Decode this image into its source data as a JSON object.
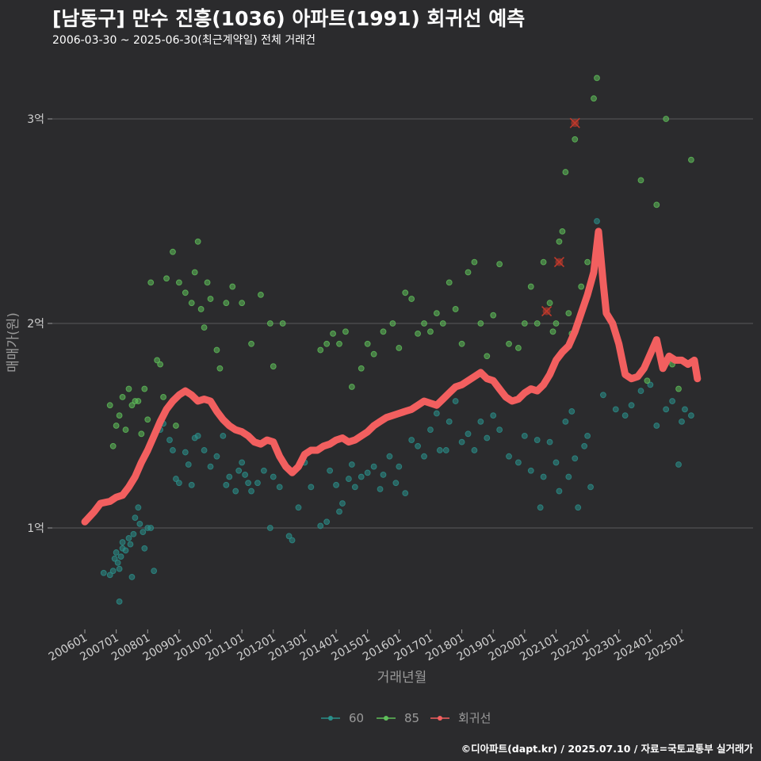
{
  "header": {
    "title": "[남동구] 만수 진흥(1036) 아파트(1991) 회귀선 예측",
    "subtitle": "2006-03-30 ~ 2025-06-30(최근계약일) 전체 거래건"
  },
  "caption": "©디아파트(dapt.kr) / 2025.07.10 / 자료=국토교통부 실거래가",
  "colors": {
    "background": "#2b2b2d",
    "series_60": "#2a8f8a",
    "series_85": "#5fbf5a",
    "regression": "#f25f5f",
    "outlier": "#c0392b",
    "grid": "#5a5a5a"
  },
  "chart_data": {
    "type": "scatter",
    "xlabel": "거래년월",
    "ylabel": "매매가(원)",
    "x_tick_labels": [
      "200601",
      "200701",
      "200801",
      "200901",
      "201001",
      "201101",
      "201201",
      "201301",
      "201401",
      "201501",
      "201601",
      "201701",
      "201801",
      "201901",
      "202001",
      "202101",
      "202201",
      "202301",
      "202401",
      "202501"
    ],
    "y_ticks": [
      1,
      2,
      3
    ],
    "y_tick_labels": [
      "1억",
      "2억",
      "3억"
    ],
    "ylim": [
      0.5,
      3.25
    ],
    "xlim": [
      2005.8,
      2025.75
    ],
    "grid": true,
    "legend_position": "bottom",
    "legend": [
      {
        "key": "60",
        "label": "60"
      },
      {
        "key": "85",
        "label": "85"
      },
      {
        "key": "reg",
        "label": "회귀선"
      }
    ],
    "series": [
      {
        "name": "60",
        "points": [
          [
            2006.6,
            0.78
          ],
          [
            2006.8,
            0.77
          ],
          [
            2006.9,
            0.79
          ],
          [
            2006.95,
            0.85
          ],
          [
            2007.0,
            0.88
          ],
          [
            2007.05,
            0.83
          ],
          [
            2007.1,
            0.8
          ],
          [
            2007.15,
            0.86
          ],
          [
            2007.2,
            0.9
          ],
          [
            2007.3,
            0.89
          ],
          [
            2007.4,
            0.95
          ],
          [
            2007.45,
            0.92
          ],
          [
            2007.5,
            0.76
          ],
          [
            2007.55,
            0.97
          ],
          [
            2007.6,
            1.05
          ],
          [
            2007.7,
            1.1
          ],
          [
            2007.75,
            1.02
          ],
          [
            2007.85,
            0.98
          ],
          [
            2007.9,
            0.9
          ],
          [
            2007.1,
            0.64
          ],
          [
            2007.2,
            0.93
          ],
          [
            2008.0,
            1.0
          ],
          [
            2008.1,
            1.0
          ],
          [
            2008.2,
            0.79
          ],
          [
            2007.9,
            1.35
          ],
          [
            2008.4,
            1.48
          ],
          [
            2008.5,
            1.51
          ],
          [
            2008.7,
            1.43
          ],
          [
            2008.8,
            1.38
          ],
          [
            2008.9,
            1.24
          ],
          [
            2009.0,
            1.22
          ],
          [
            2009.2,
            1.37
          ],
          [
            2009.3,
            1.31
          ],
          [
            2009.4,
            1.21
          ],
          [
            2009.5,
            1.44
          ],
          [
            2009.6,
            1.45
          ],
          [
            2009.8,
            1.38
          ],
          [
            2010.0,
            1.3
          ],
          [
            2010.2,
            1.35
          ],
          [
            2010.4,
            1.45
          ],
          [
            2010.5,
            1.21
          ],
          [
            2010.6,
            1.25
          ],
          [
            2010.8,
            1.18
          ],
          [
            2010.9,
            1.28
          ],
          [
            2011.0,
            1.32
          ],
          [
            2011.1,
            1.26
          ],
          [
            2011.2,
            1.22
          ],
          [
            2011.3,
            1.18
          ],
          [
            2011.5,
            1.22
          ],
          [
            2011.7,
            1.28
          ],
          [
            2011.9,
            1.0
          ],
          [
            2012.0,
            1.25
          ],
          [
            2012.2,
            1.2
          ],
          [
            2012.3,
            1.32
          ],
          [
            2012.5,
            0.96
          ],
          [
            2012.6,
            0.94
          ],
          [
            2012.8,
            1.1
          ],
          [
            2013.0,
            1.32
          ],
          [
            2013.2,
            1.2
          ],
          [
            2013.5,
            1.01
          ],
          [
            2013.7,
            1.03
          ],
          [
            2013.8,
            1.28
          ],
          [
            2014.0,
            1.21
          ],
          [
            2014.1,
            1.08
          ],
          [
            2014.2,
            1.12
          ],
          [
            2014.4,
            1.24
          ],
          [
            2014.5,
            1.31
          ],
          [
            2014.6,
            1.2
          ],
          [
            2014.8,
            1.25
          ],
          [
            2015.0,
            1.27
          ],
          [
            2015.2,
            1.3
          ],
          [
            2015.4,
            1.19
          ],
          [
            2015.5,
            1.26
          ],
          [
            2015.7,
            1.35
          ],
          [
            2015.9,
            1.22
          ],
          [
            2016.0,
            1.3
          ],
          [
            2016.2,
            1.17
          ],
          [
            2016.4,
            1.43
          ],
          [
            2016.6,
            1.4
          ],
          [
            2016.8,
            1.35
          ],
          [
            2017.0,
            1.48
          ],
          [
            2017.2,
            1.56
          ],
          [
            2017.3,
            1.38
          ],
          [
            2017.5,
            1.38
          ],
          [
            2017.6,
            1.52
          ],
          [
            2017.8,
            1.62
          ],
          [
            2018.0,
            1.42
          ],
          [
            2018.2,
            1.46
          ],
          [
            2018.4,
            1.38
          ],
          [
            2018.6,
            1.52
          ],
          [
            2018.8,
            1.44
          ],
          [
            2019.0,
            1.55
          ],
          [
            2019.2,
            1.48
          ],
          [
            2019.5,
            1.35
          ],
          [
            2019.8,
            1.32
          ],
          [
            2020.0,
            1.45
          ],
          [
            2020.2,
            1.28
          ],
          [
            2020.4,
            1.43
          ],
          [
            2020.5,
            1.1
          ],
          [
            2020.6,
            1.25
          ],
          [
            2020.8,
            1.42
          ],
          [
            2021.0,
            1.32
          ],
          [
            2021.1,
            1.18
          ],
          [
            2021.3,
            1.52
          ],
          [
            2021.4,
            1.25
          ],
          [
            2021.5,
            1.57
          ],
          [
            2021.6,
            1.34
          ],
          [
            2021.7,
            1.1
          ],
          [
            2021.9,
            1.4
          ],
          [
            2022.0,
            1.45
          ],
          [
            2022.1,
            1.2
          ],
          [
            2022.3,
            2.5
          ],
          [
            2022.5,
            1.65
          ],
          [
            2022.9,
            1.58
          ],
          [
            2023.2,
            1.55
          ],
          [
            2023.4,
            1.6
          ],
          [
            2023.7,
            1.67
          ],
          [
            2024.0,
            1.7
          ],
          [
            2024.2,
            1.5
          ],
          [
            2024.5,
            1.58
          ],
          [
            2024.7,
            1.62
          ],
          [
            2024.9,
            1.31
          ],
          [
            2025.0,
            1.52
          ],
          [
            2025.1,
            1.58
          ],
          [
            2025.3,
            1.55
          ]
        ]
      },
      {
        "name": "85",
        "points": [
          [
            2006.8,
            1.6
          ],
          [
            2006.9,
            1.4
          ],
          [
            2007.0,
            1.5
          ],
          [
            2007.1,
            1.55
          ],
          [
            2007.2,
            1.64
          ],
          [
            2007.3,
            1.48
          ],
          [
            2007.4,
            1.68
          ],
          [
            2007.5,
            1.6
          ],
          [
            2007.6,
            1.62
          ],
          [
            2007.7,
            1.62
          ],
          [
            2007.8,
            1.46
          ],
          [
            2007.9,
            1.68
          ],
          [
            2008.0,
            1.53
          ],
          [
            2008.1,
            2.2
          ],
          [
            2008.3,
            1.82
          ],
          [
            2008.4,
            1.8
          ],
          [
            2008.5,
            1.64
          ],
          [
            2008.6,
            2.22
          ],
          [
            2008.8,
            2.35
          ],
          [
            2008.9,
            1.5
          ],
          [
            2009.0,
            2.2
          ],
          [
            2009.2,
            2.15
          ],
          [
            2009.4,
            2.1
          ],
          [
            2009.5,
            2.25
          ],
          [
            2009.6,
            2.4
          ],
          [
            2009.7,
            2.07
          ],
          [
            2009.8,
            1.98
          ],
          [
            2009.9,
            2.2
          ],
          [
            2010.0,
            2.12
          ],
          [
            2010.2,
            1.87
          ],
          [
            2010.3,
            1.78
          ],
          [
            2010.5,
            2.1
          ],
          [
            2010.7,
            2.18
          ],
          [
            2011.0,
            2.1
          ],
          [
            2011.3,
            1.9
          ],
          [
            2011.6,
            2.14
          ],
          [
            2011.9,
            2.0
          ],
          [
            2012.0,
            1.79
          ],
          [
            2012.3,
            2.0
          ],
          [
            2013.5,
            1.87
          ],
          [
            2013.7,
            1.9
          ],
          [
            2013.9,
            1.95
          ],
          [
            2014.1,
            1.9
          ],
          [
            2014.3,
            1.96
          ],
          [
            2014.5,
            1.69
          ],
          [
            2014.8,
            1.78
          ],
          [
            2015.0,
            1.9
          ],
          [
            2015.2,
            1.85
          ],
          [
            2015.5,
            1.96
          ],
          [
            2015.8,
            2.0
          ],
          [
            2016.0,
            1.88
          ],
          [
            2016.2,
            2.15
          ],
          [
            2016.4,
            2.12
          ],
          [
            2016.6,
            1.95
          ],
          [
            2016.8,
            2.0
          ],
          [
            2017.0,
            1.96
          ],
          [
            2017.2,
            2.05
          ],
          [
            2017.4,
            2.0
          ],
          [
            2017.6,
            2.2
          ],
          [
            2017.8,
            2.07
          ],
          [
            2018.0,
            1.9
          ],
          [
            2018.2,
            2.25
          ],
          [
            2018.4,
            2.3
          ],
          [
            2018.6,
            2.0
          ],
          [
            2018.8,
            1.84
          ],
          [
            2019.0,
            2.04
          ],
          [
            2019.2,
            2.29
          ],
          [
            2019.5,
            1.9
          ],
          [
            2019.8,
            1.88
          ],
          [
            2020.0,
            2.0
          ],
          [
            2020.2,
            2.18
          ],
          [
            2020.4,
            2.0
          ],
          [
            2020.6,
            2.3
          ],
          [
            2020.8,
            2.1
          ],
          [
            2020.9,
            1.96
          ],
          [
            2021.0,
            2.0
          ],
          [
            2021.1,
            2.4
          ],
          [
            2021.2,
            2.45
          ],
          [
            2021.3,
            2.74
          ],
          [
            2021.4,
            2.05
          ],
          [
            2021.5,
            1.95
          ],
          [
            2021.6,
            2.9
          ],
          [
            2021.8,
            2.18
          ],
          [
            2022.0,
            2.3
          ],
          [
            2022.2,
            3.1
          ],
          [
            2022.3,
            3.2
          ],
          [
            2023.2,
            1.75
          ],
          [
            2023.7,
            2.7
          ],
          [
            2023.9,
            1.72
          ],
          [
            2024.2,
            2.58
          ],
          [
            2024.5,
            3.0
          ],
          [
            2024.7,
            1.8
          ],
          [
            2024.9,
            1.68
          ],
          [
            2025.3,
            2.8
          ]
        ]
      }
    ],
    "outliers": [
      [
        2020.7,
        2.06
      ],
      [
        2021.1,
        2.3
      ],
      [
        2021.6,
        2.98
      ]
    ],
    "regression": [
      [
        2006.0,
        1.03
      ],
      [
        2006.3,
        1.08
      ],
      [
        2006.5,
        1.12
      ],
      [
        2006.8,
        1.13
      ],
      [
        2007.0,
        1.15
      ],
      [
        2007.2,
        1.16
      ],
      [
        2007.4,
        1.2
      ],
      [
        2007.6,
        1.25
      ],
      [
        2007.8,
        1.32
      ],
      [
        2008.0,
        1.38
      ],
      [
        2008.2,
        1.45
      ],
      [
        2008.4,
        1.52
      ],
      [
        2008.6,
        1.58
      ],
      [
        2008.8,
        1.62
      ],
      [
        2009.0,
        1.65
      ],
      [
        2009.2,
        1.67
      ],
      [
        2009.4,
        1.65
      ],
      [
        2009.6,
        1.62
      ],
      [
        2009.8,
        1.63
      ],
      [
        2010.0,
        1.62
      ],
      [
        2010.2,
        1.57
      ],
      [
        2010.4,
        1.53
      ],
      [
        2010.6,
        1.5
      ],
      [
        2010.8,
        1.48
      ],
      [
        2011.0,
        1.47
      ],
      [
        2011.2,
        1.45
      ],
      [
        2011.4,
        1.42
      ],
      [
        2011.6,
        1.41
      ],
      [
        2011.8,
        1.43
      ],
      [
        2012.0,
        1.42
      ],
      [
        2012.2,
        1.35
      ],
      [
        2012.4,
        1.3
      ],
      [
        2012.6,
        1.27
      ],
      [
        2012.8,
        1.3
      ],
      [
        2013.0,
        1.36
      ],
      [
        2013.2,
        1.38
      ],
      [
        2013.4,
        1.38
      ],
      [
        2013.6,
        1.4
      ],
      [
        2013.8,
        1.41
      ],
      [
        2014.0,
        1.43
      ],
      [
        2014.2,
        1.44
      ],
      [
        2014.4,
        1.42
      ],
      [
        2014.6,
        1.43
      ],
      [
        2014.8,
        1.45
      ],
      [
        2015.0,
        1.47
      ],
      [
        2015.2,
        1.5
      ],
      [
        2015.4,
        1.52
      ],
      [
        2015.6,
        1.54
      ],
      [
        2015.8,
        1.55
      ],
      [
        2016.0,
        1.56
      ],
      [
        2016.2,
        1.57
      ],
      [
        2016.4,
        1.58
      ],
      [
        2016.6,
        1.6
      ],
      [
        2016.8,
        1.62
      ],
      [
        2017.0,
        1.61
      ],
      [
        2017.2,
        1.6
      ],
      [
        2017.4,
        1.63
      ],
      [
        2017.6,
        1.66
      ],
      [
        2017.8,
        1.69
      ],
      [
        2018.0,
        1.7
      ],
      [
        2018.2,
        1.72
      ],
      [
        2018.4,
        1.74
      ],
      [
        2018.6,
        1.76
      ],
      [
        2018.8,
        1.73
      ],
      [
        2019.0,
        1.72
      ],
      [
        2019.2,
        1.68
      ],
      [
        2019.4,
        1.64
      ],
      [
        2019.6,
        1.62
      ],
      [
        2019.8,
        1.63
      ],
      [
        2020.0,
        1.66
      ],
      [
        2020.2,
        1.68
      ],
      [
        2020.4,
        1.67
      ],
      [
        2020.6,
        1.7
      ],
      [
        2020.8,
        1.75
      ],
      [
        2021.0,
        1.82
      ],
      [
        2021.2,
        1.86
      ],
      [
        2021.4,
        1.89
      ],
      [
        2021.6,
        1.96
      ],
      [
        2021.8,
        2.05
      ],
      [
        2022.0,
        2.14
      ],
      [
        2022.2,
        2.25
      ],
      [
        2022.35,
        2.45
      ],
      [
        2022.5,
        2.2
      ],
      [
        2022.6,
        2.05
      ],
      [
        2022.8,
        2.0
      ],
      [
        2023.0,
        1.9
      ],
      [
        2023.2,
        1.75
      ],
      [
        2023.4,
        1.73
      ],
      [
        2023.6,
        1.74
      ],
      [
        2023.8,
        1.78
      ],
      [
        2024.0,
        1.85
      ],
      [
        2024.2,
        1.92
      ],
      [
        2024.4,
        1.78
      ],
      [
        2024.6,
        1.84
      ],
      [
        2024.8,
        1.82
      ],
      [
        2025.0,
        1.82
      ],
      [
        2025.2,
        1.8
      ],
      [
        2025.4,
        1.82
      ],
      [
        2025.5,
        1.73
      ]
    ]
  }
}
